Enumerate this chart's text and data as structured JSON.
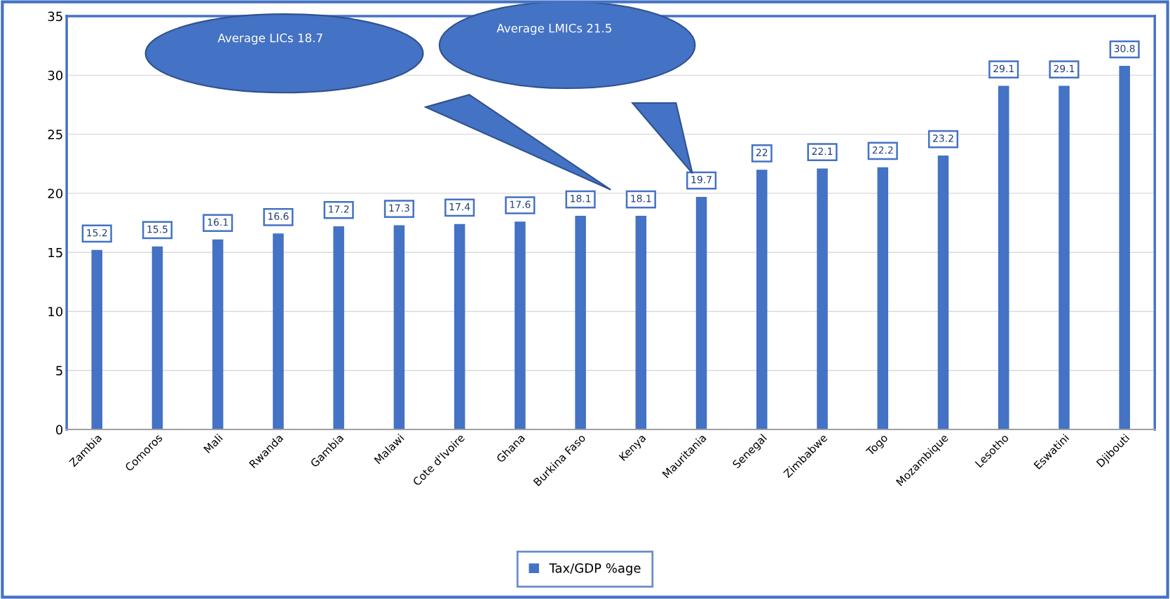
{
  "chart_data": {
    "type": "bar",
    "categories": [
      "Zambia",
      "Comoros",
      "Mali",
      "Rwanda",
      "Gambia",
      "Malawi",
      "Cote d'Ivoire",
      "Ghana",
      "Burkina Faso",
      "Kenya",
      "Mauritania",
      "Senegal",
      "Zimbabwe",
      "Togo",
      "Mozambique",
      "Lesotho",
      "Eswatini",
      "Djibouti"
    ],
    "series": [
      {
        "name": "Tax/GDP %age",
        "color": "#4472c4",
        "values": [
          15.2,
          15.5,
          16.1,
          16.6,
          17.2,
          17.3,
          17.4,
          17.6,
          18.1,
          18.1,
          19.7,
          22,
          22.1,
          22.2,
          23.2,
          29.1,
          29.1,
          30.8
        ]
      }
    ],
    "ylim": [
      0,
      35
    ],
    "yticks": [
      0,
      5,
      10,
      15,
      20,
      25,
      30,
      35
    ],
    "grid": "y",
    "legend": "bottom",
    "data_labels": true,
    "annotations": [
      "Average LICs 18.7",
      "Average LMICs 21.5"
    ]
  }
}
